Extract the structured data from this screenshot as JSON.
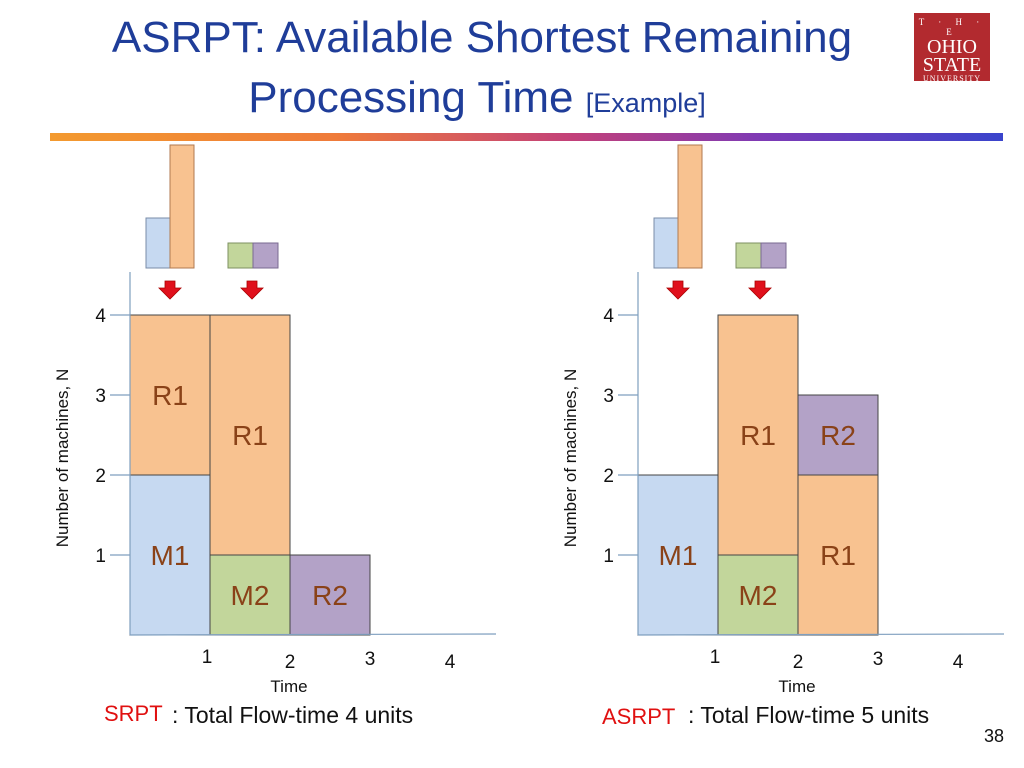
{
  "slide": {
    "title_line1": "ASRPT:  Available Shortest Remaining",
    "title_line2": "Processing Time",
    "title_bracket": "[Example]",
    "logo": {
      "line_the": "T · H · E",
      "line_ohio": "OHIO",
      "line_state": "STATE",
      "line_univ": "UNIVERSITY"
    },
    "slide_number": "38"
  },
  "colors": {
    "title": "#1f3d99",
    "job_R1": "#f8c290",
    "job_M1": "#c6d9f1",
    "job_M2": "#c2d69b",
    "job_R2": "#b3a2c7",
    "block_text": "#8a4218",
    "arrow": "#e0101c",
    "caption_red": "#e01010"
  },
  "diagrams": [
    {
      "name": "SRPT",
      "ylabel": "Number of machines, N",
      "xlabel": "Time",
      "y_ticks": [
        "1",
        "2",
        "3",
        "4"
      ],
      "x_ticks": [
        "1",
        "2",
        "3",
        "4"
      ],
      "caption_label": "SRPT",
      "caption_text": ": Total Flow-time 4 units",
      "blocks": [
        {
          "label": "M1",
          "job": "M1",
          "t_start": 0,
          "t_end": 1,
          "n_start": 0,
          "n_end": 2
        },
        {
          "label": "R1",
          "job": "R1",
          "t_start": 0,
          "t_end": 1,
          "n_start": 2,
          "n_end": 4
        },
        {
          "label": "M2",
          "job": "M2",
          "t_start": 1,
          "t_end": 2,
          "n_start": 0,
          "n_end": 1
        },
        {
          "label": "R1",
          "job": "R1",
          "t_start": 1,
          "t_end": 2,
          "n_start": 1,
          "n_end": 4
        },
        {
          "label": "R2",
          "job": "R2",
          "t_start": 2,
          "t_end": 3,
          "n_start": 0,
          "n_end": 1
        }
      ]
    },
    {
      "name": "ASRPT",
      "ylabel": "Number of machines, N",
      "xlabel": "Time",
      "y_ticks": [
        "1",
        "2",
        "3",
        "4"
      ],
      "x_ticks": [
        "1",
        "2",
        "3",
        "4"
      ],
      "caption_label": "ASRPT",
      "caption_text": ": Total Flow-time 5 units",
      "blocks": [
        {
          "label": "M1",
          "job": "M1",
          "t_start": 0,
          "t_end": 1,
          "n_start": 0,
          "n_end": 2
        },
        {
          "label": "M2",
          "job": "M2",
          "t_start": 1,
          "t_end": 2,
          "n_start": 0,
          "n_end": 1
        },
        {
          "label": "R1",
          "job": "R1",
          "t_start": 1,
          "t_end": 2,
          "n_start": 1,
          "n_end": 4
        },
        {
          "label": "R1",
          "job": "R1",
          "t_start": 2,
          "t_end": 3,
          "n_start": 0,
          "n_end": 2
        },
        {
          "label": "R2",
          "job": "R2",
          "t_start": 2,
          "t_end": 3,
          "n_start": 2,
          "n_end": 3
        }
      ]
    }
  ]
}
